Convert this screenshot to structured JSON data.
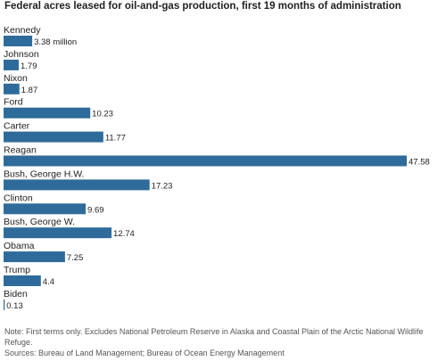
{
  "header": {
    "title": "Federal acres leased for oil-and-gas production, first 19 months of administration"
  },
  "chart_data": {
    "type": "bar",
    "orientation": "horizontal",
    "title": "Federal acres leased for oil-and-gas production, first 19 months of administration",
    "categories": [
      "Kennedy",
      "Johnson",
      "Nixon",
      "Ford",
      "Carter",
      "Reagan",
      "Bush, George H.W.",
      "Clinton",
      "Bush, George W.",
      "Obama",
      "Trump",
      "Biden"
    ],
    "values": [
      3.38,
      1.79,
      1.87,
      10.23,
      11.77,
      47.58,
      17.23,
      9.69,
      12.74,
      7.25,
      4.4,
      0.13
    ],
    "value_labels": [
      "3.38 million",
      "1.79",
      "1.87",
      "10.23",
      "11.77",
      "47.58",
      "17.23",
      "9.69",
      "12.74",
      "7.25",
      "4.4",
      "0.13"
    ],
    "xlim": [
      0,
      47.58
    ],
    "grid": false,
    "bar_color": "#2f6b9a",
    "xlabel": "",
    "ylabel": ""
  },
  "footer": {
    "note": "Note: First terms only. Excludes National Petroleum Reserve in Alaska and Coastal Plain of the Arctic National Wildlife Refuge.",
    "sources": "Sources: Bureau of Land Management; Bureau of Ocean Energy Management"
  }
}
